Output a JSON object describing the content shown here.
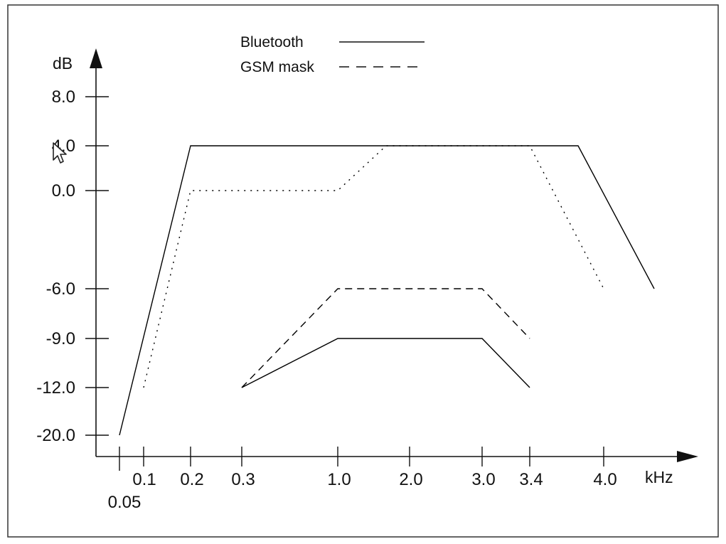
{
  "chart_data": {
    "type": "line",
    "xlabel": "kHz",
    "ylabel": "dB",
    "x_ticks": [
      "0.05",
      "0.1",
      "0.2",
      "0.3",
      "1.0",
      "2.0",
      "3.0",
      "3.4",
      "4.0"
    ],
    "y_ticks": [
      "8.0",
      "4.0",
      "0.0",
      "-6.0",
      "-9.0",
      "-12.0",
      "-20.0"
    ],
    "ylim": [
      -22,
      12
    ],
    "grid": false,
    "legend": {
      "position": "top-center",
      "entries": [
        {
          "name": "Bluetooth",
          "line_style": "solid"
        },
        {
          "name": "GSM mask",
          "line_style": "dashed"
        }
      ]
    },
    "series": [
      {
        "name": "Bluetooth",
        "role": "upper limit",
        "line_style": "solid",
        "color": "#000000",
        "points": [
          [
            0.05,
            -20.0
          ],
          [
            0.2,
            4.0
          ],
          [
            3.8,
            4.0
          ],
          [
            4.5,
            -6.0
          ]
        ]
      },
      {
        "name": "Bluetooth",
        "role": "lower limit",
        "line_style": "solid",
        "color": "#000000",
        "points": [
          [
            0.3,
            -12.0
          ],
          [
            1.0,
            -9.0
          ],
          [
            3.0,
            -9.0
          ],
          [
            3.4,
            -12.0
          ]
        ]
      },
      {
        "name": "GSM mask",
        "role": "lower limit",
        "line_style": "dashed",
        "color": "#000000",
        "points": [
          [
            0.3,
            -12.0
          ],
          [
            1.0,
            -6.0
          ],
          [
            3.0,
            -6.0
          ],
          [
            3.4,
            -9.0
          ]
        ]
      },
      {
        "name": "",
        "role": "upper limit",
        "line_style": "dotted",
        "color": "#000000",
        "points": [
          [
            0.1,
            -12.0
          ],
          [
            0.2,
            0.0
          ],
          [
            1.0,
            0.0
          ],
          [
            1.5,
            4.0
          ],
          [
            3.4,
            4.0
          ],
          [
            4.0,
            -6.0
          ]
        ]
      }
    ]
  }
}
